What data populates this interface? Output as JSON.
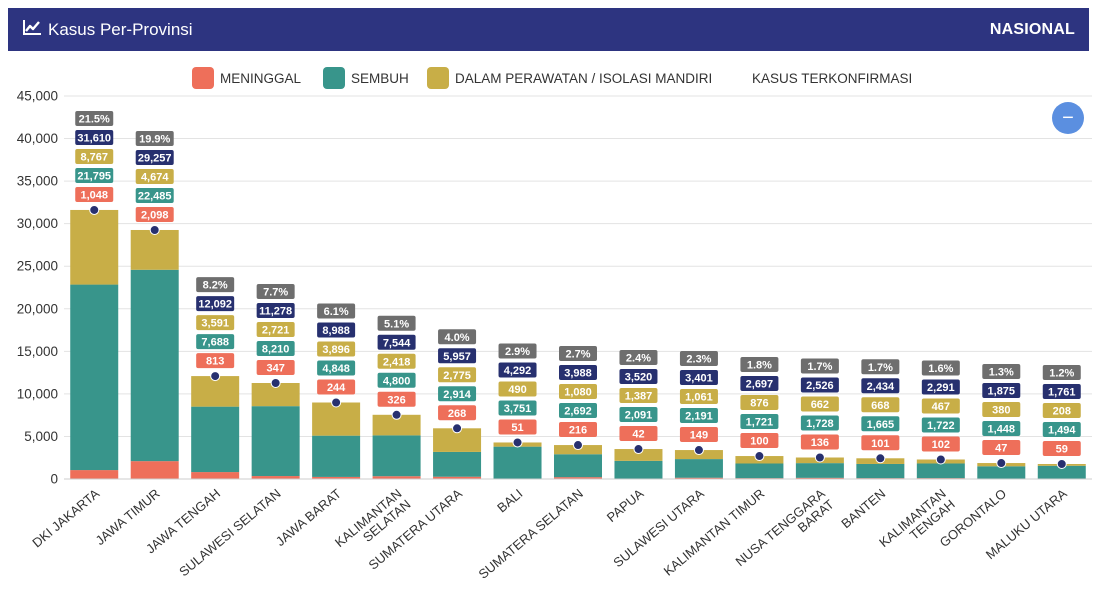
{
  "header": {
    "title": "Kasus Per-Provinsi",
    "scope_label": "NASIONAL",
    "icon": "trend-chart-icon"
  },
  "zoom_button": {
    "label": "−",
    "icon": "zoom-out-icon"
  },
  "colors": {
    "header_bg": "#2d3480",
    "meninggal": "#ee6f5a",
    "sembuh": "#38958b",
    "dalam_perawatan": "#c8ae47",
    "kasus_terkonfirmasi": "#27306f",
    "percent_box": "#6e6e6e"
  },
  "legend": [
    {
      "key": "meninggal",
      "label": "MENINGGAL"
    },
    {
      "key": "sembuh",
      "label": "SEMBUH"
    },
    {
      "key": "dalam_perawatan",
      "label": "DALAM PERAWATAN / ISOLASI MANDIRI"
    },
    {
      "key": "kasus_terkonfirmasi",
      "label": "KASUS TERKONFIRMASI"
    }
  ],
  "chart_data": {
    "type": "bar",
    "stacked": true,
    "legend_position": "top",
    "grid": true,
    "ylim": [
      0,
      45000
    ],
    "yticks": [
      "0",
      "5,000",
      "10,000",
      "15,000",
      "20,000",
      "25,000",
      "30,000",
      "35,000",
      "40,000",
      "45,000"
    ],
    "categories": [
      "DKI JAKARTA",
      "JAWA TIMUR",
      "JAWA TENGAH",
      "SULAWESI SELATAN",
      "JAWA BARAT",
      "KALIMANTAN SELATAN",
      "SUMATERA UTARA",
      "BALI",
      "SUMATERA SELATAN",
      "PAPUA",
      "SULAWESI UTARA",
      "KALIMANTAN TIMUR",
      "NUSA TENGGARA BARAT",
      "BANTEN",
      "KALIMANTAN TENGAH",
      "GORONTALO",
      "MALUKU UTARA"
    ],
    "category_label_lines": [
      [
        "DKI JAKARTA"
      ],
      [
        "JAWA TIMUR"
      ],
      [
        "JAWA TENGAH"
      ],
      [
        "SULAWESI SELATAN"
      ],
      [
        "JAWA BARAT"
      ],
      [
        "KALIMANTAN",
        "SELATAN"
      ],
      [
        "SUMATERA UTARA"
      ],
      [
        "BALI"
      ],
      [
        "SUMATERA SELATAN"
      ],
      [
        "PAPUA"
      ],
      [
        "SULAWESI UTARA"
      ],
      [
        "KALIMANTAN TIMUR"
      ],
      [
        "NUSA TENGGARA",
        "BARAT"
      ],
      [
        "BANTEN"
      ],
      [
        "KALIMANTAN",
        "TENGAH"
      ],
      [
        "GORONTALO"
      ],
      [
        "MALUKU UTARA"
      ]
    ],
    "series": [
      {
        "key": "meninggal",
        "name": "MENINGGAL",
        "type": "bar",
        "values": [
          1048,
          2098,
          813,
          347,
          244,
          326,
          268,
          51,
          216,
          42,
          149,
          100,
          136,
          101,
          102,
          47,
          59
        ],
        "labels": [
          "1,048",
          "2,098",
          "813",
          "347",
          "244",
          "326",
          "268",
          "51",
          "216",
          "42",
          "149",
          "100",
          "136",
          "101",
          "102",
          "47",
          "59"
        ]
      },
      {
        "key": "sembuh",
        "name": "SEMBUH",
        "type": "bar",
        "values": [
          21795,
          22485,
          7688,
          8210,
          4848,
          4800,
          2914,
          3751,
          2692,
          2091,
          2191,
          1721,
          1728,
          1665,
          1722,
          1448,
          1494
        ],
        "labels": [
          "21,795",
          "22,485",
          "7,688",
          "8,210",
          "4,848",
          "4,800",
          "2,914",
          "3,751",
          "2,692",
          "2,091",
          "2,191",
          "1,721",
          "1,728",
          "1,665",
          "1,722",
          "1,448",
          "1,494"
        ]
      },
      {
        "key": "dalam_perawatan",
        "name": "DALAM PERAWATAN / ISOLASI MANDIRI",
        "type": "bar",
        "values": [
          8767,
          4674,
          3591,
          2721,
          3896,
          2418,
          2775,
          490,
          1080,
          1387,
          1061,
          876,
          662,
          668,
          467,
          380,
          208
        ],
        "labels": [
          "8,767",
          "4,674",
          "3,591",
          "2,721",
          "3,896",
          "2,418",
          "2,775",
          "490",
          "1,080",
          "1,387",
          "1,061",
          "876",
          "662",
          "668",
          "467",
          "380",
          "208"
        ]
      },
      {
        "key": "kasus_terkonfirmasi",
        "name": "KASUS TERKONFIRMASI",
        "type": "point",
        "values": [
          31610,
          29257,
          12092,
          11278,
          8988,
          7544,
          5957,
          4292,
          3988,
          3520,
          3401,
          2697,
          2526,
          2434,
          2291,
          1875,
          1761
        ],
        "labels": [
          "31,610",
          "29,257",
          "12,092",
          "11,278",
          "8,988",
          "7,544",
          "5,957",
          "4,292",
          "3,988",
          "3,520",
          "3,401",
          "2,697",
          "2,526",
          "2,434",
          "2,291",
          "1,875",
          "1,761"
        ]
      }
    ],
    "percent_share": [
      21.5,
      19.9,
      8.2,
      7.7,
      6.1,
      5.1,
      4.0,
      2.9,
      2.7,
      2.4,
      2.3,
      1.8,
      1.7,
      1.7,
      1.6,
      1.3,
      1.2
    ],
    "percent_labels": [
      "21.5%",
      "19.9%",
      "8.2%",
      "7.7%",
      "6.1%",
      "5.1%",
      "4.0%",
      "2.9%",
      "2.7%",
      "2.4%",
      "2.3%",
      "1.8%",
      "1.7%",
      "1.7%",
      "1.6%",
      "1.3%",
      "1.2%"
    ]
  }
}
